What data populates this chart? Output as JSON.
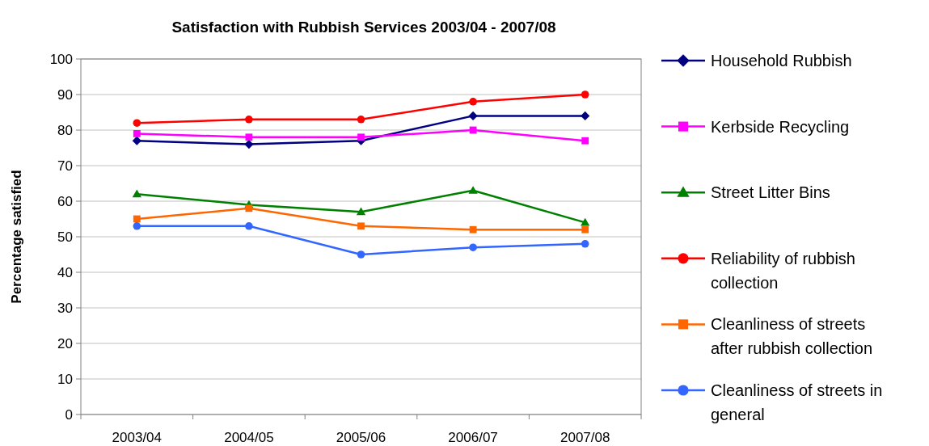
{
  "chart_data": {
    "type": "line",
    "title": "Satisfaction with Rubbish Services 2003/04 - 2007/08",
    "ylabel": "Percentage satisfied",
    "categories": [
      "2003/04",
      "2004/05",
      "2005/06",
      "2006/07",
      "2007/08"
    ],
    "ylim": [
      0,
      100
    ],
    "yticks": [
      0,
      10,
      20,
      30,
      40,
      50,
      60,
      70,
      80,
      90,
      100
    ],
    "grid": "y",
    "legend": "right",
    "line_style": "solid",
    "series": [
      {
        "name": "Household Rubbish",
        "color": "#000080",
        "marker": "diamond",
        "values": [
          77,
          76,
          77,
          84,
          84
        ]
      },
      {
        "name": "Kerbside Recycling",
        "color": "#ff00ff",
        "marker": "square",
        "values": [
          79,
          78,
          78,
          80,
          77
        ]
      },
      {
        "name": "Street Litter Bins",
        "color": "#008000",
        "marker": "triangle",
        "values": [
          62,
          59,
          57,
          63,
          54
        ]
      },
      {
        "name": "Reliability of rubbish collection",
        "color": "#ff0000",
        "marker": "circle",
        "values": [
          82,
          83,
          83,
          88,
          90
        ]
      },
      {
        "name": "Cleanliness of streets after rubbish collection",
        "color": "#ff6600",
        "marker": "square",
        "values": [
          55,
          58,
          53,
          52,
          52
        ]
      },
      {
        "name": "Cleanliness of streets in general",
        "color": "#3366ff",
        "marker": "circle",
        "values": [
          53,
          53,
          45,
          47,
          48
        ]
      }
    ]
  }
}
